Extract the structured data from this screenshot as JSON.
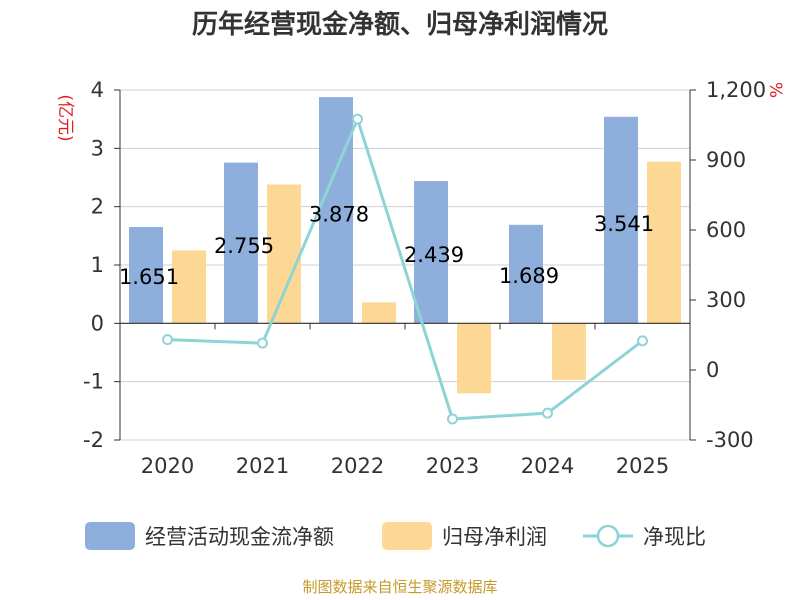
{
  "chart_data": {
    "type": "bar",
    "title": "历年经营现金净额、归母净利润情况",
    "categories": [
      "2020",
      "2021",
      "2022",
      "2023",
      "2024",
      "2025"
    ],
    "series": [
      {
        "name": "经营活动现金流净额",
        "kind": "bar",
        "axis": "left",
        "color": "#8eaedb",
        "values": [
          1.651,
          2.755,
          3.878,
          2.439,
          1.689,
          3.541
        ]
      },
      {
        "name": "归母净利润",
        "kind": "bar",
        "axis": "left",
        "color": "#fdd794",
        "values": [
          1.25,
          2.38,
          0.36,
          -1.2,
          -0.97,
          2.77
        ]
      },
      {
        "name": "净现比",
        "kind": "line",
        "axis": "right",
        "color": "#8ed4d6",
        "values": [
          130,
          115,
          1075,
          -210,
          -185,
          125
        ]
      }
    ],
    "data_labels": [
      "1.651",
      "2.755",
      "3.878",
      "2.439",
      "1.689",
      "3.541"
    ],
    "left_axis": {
      "unit": "(亿元)",
      "range": [
        -2,
        4
      ],
      "ticks": [
        "4",
        "3",
        "2",
        "1",
        "0",
        "-1",
        "-2"
      ]
    },
    "right_axis": {
      "unit": "%",
      "range": [
        -300,
        1200
      ],
      "ticks": [
        "1,200",
        "900",
        "600",
        "300",
        "0",
        "-300"
      ]
    },
    "grid": true,
    "legend_position": "bottom"
  },
  "source": "制图数据来自恒生聚源数据库"
}
